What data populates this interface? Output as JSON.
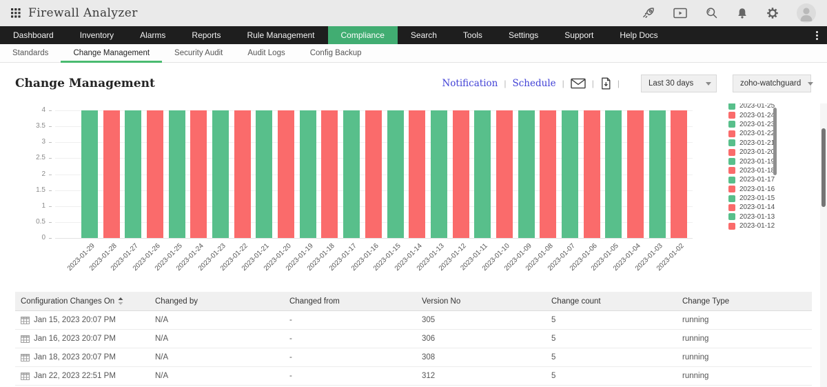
{
  "topbar": {
    "app_title": "Firewall Analyzer",
    "icons": [
      "apps-grid-icon",
      "rocket-icon",
      "demo-video-icon",
      "search-icon",
      "bell-icon",
      "gear-icon",
      "user-avatar"
    ]
  },
  "navbar": {
    "items": [
      "Dashboard",
      "Inventory",
      "Alarms",
      "Reports",
      "Rule Management",
      "Compliance",
      "Search",
      "Tools",
      "Settings",
      "Support",
      "Help Docs"
    ],
    "active_item": "Compliance",
    "active_color": "#41ad72"
  },
  "subnav": {
    "tabs": [
      "Standards",
      "Change Management",
      "Security Audit",
      "Audit Logs",
      "Config Backup"
    ],
    "active_tab": "Change Management",
    "active_underline_color": "#4abb70"
  },
  "page": {
    "title": "Change Management",
    "actions": {
      "notification": "Notification",
      "schedule": "Schedule",
      "email_icon": "envelope-icon",
      "export_icon": "pdf-export-icon"
    },
    "period_select": {
      "value": "Last 30 days"
    },
    "device_select": {
      "value": "zoho-watchguard"
    }
  },
  "chart_data": {
    "type": "bar",
    "title": "",
    "xlabel": "",
    "ylabel": "",
    "ylim": [
      0,
      4
    ],
    "yticks": [
      0,
      0.5,
      1,
      1.5,
      2,
      2.5,
      3,
      3.5,
      4
    ],
    "grid": true,
    "legend_position": "right",
    "legend_scrollable": true,
    "categories": [
      "2023-01-29",
      "2023-01-28",
      "2023-01-27",
      "2023-01-26",
      "2023-01-25",
      "2023-01-24",
      "2023-01-23",
      "2023-01-22",
      "2023-01-21",
      "2023-01-20",
      "2023-01-19",
      "2023-01-18",
      "2023-01-17",
      "2023-01-16",
      "2023-01-15",
      "2023-01-14",
      "2023-01-13",
      "2023-01-12",
      "2023-01-11",
      "2023-01-10",
      "2023-01-09",
      "2023-01-08",
      "2023-01-07",
      "2023-01-06",
      "2023-01-05",
      "2023-01-04",
      "2023-01-03",
      "2023-01-02"
    ],
    "values": [
      4,
      4,
      4,
      4,
      4,
      4,
      4,
      4,
      4,
      4,
      4,
      4,
      4,
      4,
      4,
      4,
      4,
      4,
      4,
      4,
      4,
      4,
      4,
      4,
      4,
      4,
      4,
      4
    ],
    "colors": {
      "green": "#58bf8b",
      "red": "#fa6b6b"
    },
    "color_rule": "odd day of month = green, even day = red",
    "legend_visible": [
      "2023-01-25",
      "2023-01-24",
      "2023-01-23",
      "2023-01-22",
      "2023-01-21",
      "2023-01-20",
      "2023-01-19",
      "2023-01-18",
      "2023-01-17",
      "2023-01-16",
      "2023-01-15",
      "2023-01-14",
      "2023-01-13",
      "2023-01-12"
    ]
  },
  "table": {
    "columns": [
      "Configuration Changes On",
      "Changed by",
      "Changed from",
      "Version No",
      "Change count",
      "Change Type"
    ],
    "sort_column": "Configuration Changes On",
    "row_icon": "grid-table-icon",
    "rows": [
      [
        "Jan 15, 2023 20:07 PM",
        "N/A",
        "-",
        "305",
        "5",
        "running"
      ],
      [
        "Jan 16, 2023 20:07 PM",
        "N/A",
        "-",
        "306",
        "5",
        "running"
      ],
      [
        "Jan 18, 2023 20:07 PM",
        "N/A",
        "-",
        "308",
        "5",
        "running"
      ],
      [
        "Jan 22, 2023 22:51 PM",
        "N/A",
        "-",
        "312",
        "5",
        "running"
      ]
    ]
  }
}
